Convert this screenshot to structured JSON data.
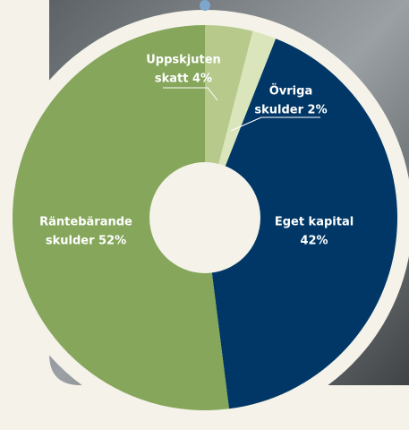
{
  "chart_data": {
    "type": "pie",
    "labels": [
      [
        "Uppskjuten",
        "skatt 4%"
      ],
      [
        "Övriga",
        "skulder 2%"
      ],
      [
        "Eget kapital",
        "42%"
      ],
      [
        "Räntebärande",
        "skulder 52%"
      ]
    ],
    "values": [
      4,
      2,
      42,
      52
    ],
    "colors": [
      "#b7ca8c",
      "#dbe5bb",
      "#003766",
      "#86a65b"
    ]
  }
}
